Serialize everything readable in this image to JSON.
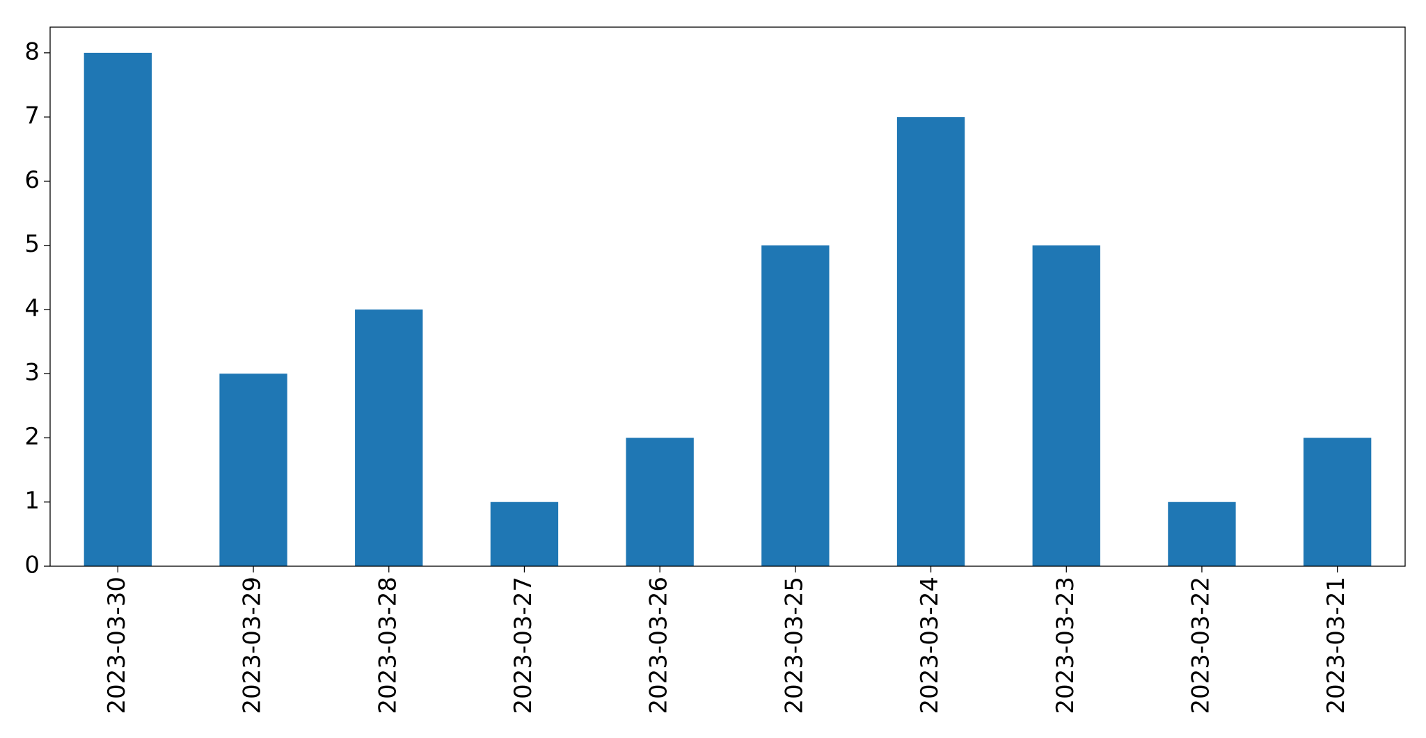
{
  "chart_data": {
    "type": "bar",
    "categories": [
      "2023-03-30",
      "2023-03-29",
      "2023-03-28",
      "2023-03-27",
      "2023-03-26",
      "2023-03-25",
      "2023-03-24",
      "2023-03-23",
      "2023-03-22",
      "2023-03-21"
    ],
    "values": [
      8,
      3,
      4,
      1,
      2,
      5,
      7,
      5,
      1,
      2
    ],
    "color": "#1f77b4",
    "ylim": [
      0,
      8.4
    ],
    "yticks": [
      0,
      1,
      2,
      3,
      4,
      5,
      6,
      7,
      8
    ],
    "grid": false
  }
}
